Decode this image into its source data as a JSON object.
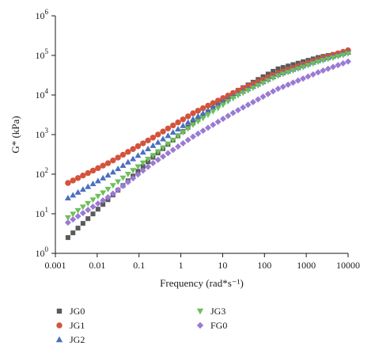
{
  "chart_data": {
    "type": "scatter",
    "xlabel": "Frequency (rad*s⁻¹)",
    "ylabel": "G* (kPa)",
    "x_scale": "log",
    "y_scale": "log",
    "xlim": [
      0.001,
      10000
    ],
    "ylim": [
      1,
      1000000
    ],
    "x_ticks": [
      0.001,
      0.01,
      0.1,
      1,
      10,
      100,
      1000,
      10000
    ],
    "x_tick_labels": [
      "0.001",
      "0.01",
      "0.1",
      "1",
      "10",
      "100",
      "1000",
      "10000"
    ],
    "y_ticks": [
      1,
      10,
      100,
      1000,
      10000,
      100000,
      1000000
    ],
    "y_tick_labels": [
      {
        "base": "10",
        "exp": "0"
      },
      {
        "base": "10",
        "exp": "1"
      },
      {
        "base": "10",
        "exp": "2"
      },
      {
        "base": "10",
        "exp": "3"
      },
      {
        "base": "10",
        "exp": "4"
      },
      {
        "base": "10",
        "exp": "5"
      },
      {
        "base": "10",
        "exp": "6"
      }
    ],
    "grid": false,
    "legend_position": "bottom",
    "series": [
      {
        "name": "JG0",
        "marker": "square",
        "color": "#5a5a5a",
        "x": [
          0.002,
          0.02,
          0.2,
          2,
          20,
          200,
          2000,
          10000
        ],
        "y": [
          2.5,
          25,
          250,
          2000,
          12000,
          45000,
          90000,
          125000
        ]
      },
      {
        "name": "JG1",
        "marker": "circle",
        "color": "#d4533c",
        "x": [
          0.002,
          0.02,
          0.2,
          2,
          20,
          200,
          2000,
          10000
        ],
        "y": [
          60,
          200,
          800,
          3500,
          12000,
          35000,
          80000,
          135000
        ]
      },
      {
        "name": "JG2",
        "marker": "triangle-up",
        "color": "#4a6fbf",
        "x": [
          0.002,
          0.02,
          0.2,
          2,
          20,
          200,
          2000,
          10000
        ],
        "y": [
          25,
          100,
          500,
          2500,
          10000,
          32000,
          75000,
          120000
        ]
      },
      {
        "name": "JG3",
        "marker": "triangle-down",
        "color": "#6dbf5a",
        "x": [
          0.002,
          0.02,
          0.2,
          2,
          20,
          200,
          2000,
          10000
        ],
        "y": [
          8,
          45,
          280,
          1800,
          9000,
          30000,
          70000,
          110000
        ]
      },
      {
        "name": "FG0",
        "marker": "diamond",
        "color": "#9a7ad4",
        "x": [
          0.002,
          0.02,
          0.2,
          2,
          20,
          200,
          2000,
          10000
        ],
        "y": [
          6,
          28,
          180,
          900,
          3800,
          14000,
          38000,
          70000
        ]
      }
    ]
  }
}
